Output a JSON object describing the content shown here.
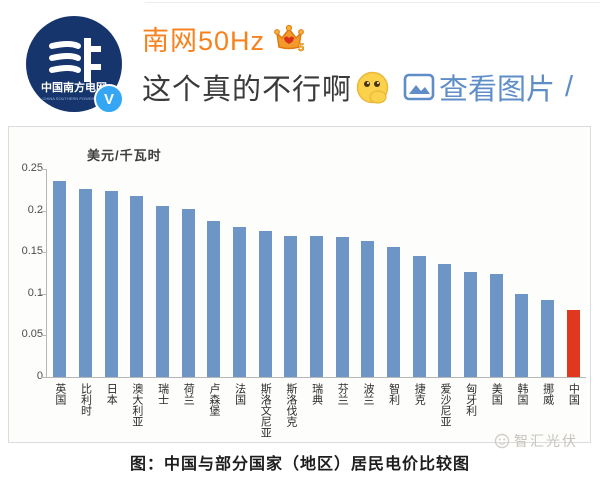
{
  "post": {
    "username": "南网50Hz",
    "vip_level": "5",
    "verified_letter": "V",
    "avatar": {
      "org_name_cn": "中国南方电网",
      "org_name_en": "CHINA SOUTHERN POWER GRID"
    },
    "content": "这个真的不行啊",
    "emoji_name": "shy-hand-over-mouth",
    "view_image_label": "查看图片",
    "trailing_text": "/"
  },
  "chart": {
    "unit_label": "美元/千瓦时",
    "caption": "图：中国与部分国家（地区）居民电价比较图"
  },
  "watermark": {
    "text": "智汇光伏"
  },
  "colors": {
    "username_orange": "#f7821e",
    "link_blue": "#5e8dc8",
    "bar_blue": "#6d95c5",
    "bar_red": "#e0371f",
    "avatar_navy": "#16356d",
    "verified_blue": "#35a6f3"
  },
  "chart_data": {
    "type": "bar",
    "title": "",
    "unit": "美元/千瓦时",
    "ylabel": "美元/千瓦时",
    "xlabel": "",
    "categories": [
      "英国",
      "比利时",
      "日本",
      "澳大利亚",
      "瑞士",
      "荷兰",
      "卢森堡",
      "法国",
      "斯洛文尼亚",
      "斯洛伐克",
      "瑞典",
      "芬兰",
      "波兰",
      "智利",
      "捷克",
      "爱沙尼亚",
      "匈牙利",
      "美国",
      "韩国",
      "挪威",
      "中国"
    ],
    "values": [
      0.235,
      0.226,
      0.224,
      0.218,
      0.205,
      0.202,
      0.187,
      0.18,
      0.175,
      0.17,
      0.17,
      0.168,
      0.163,
      0.156,
      0.145,
      0.136,
      0.126,
      0.124,
      0.1,
      0.093,
      0.08
    ],
    "highlight_category": "中国",
    "bar_color": "#6d95c5",
    "highlight_color": "#e0371f",
    "ylim": [
      0,
      0.25
    ],
    "yticks": [
      0,
      0.05,
      0.1,
      0.15,
      0.2,
      0.25
    ],
    "grid": false,
    "legend": false,
    "caption": "图：中国与部分国家（地区）居民电价比较图"
  }
}
